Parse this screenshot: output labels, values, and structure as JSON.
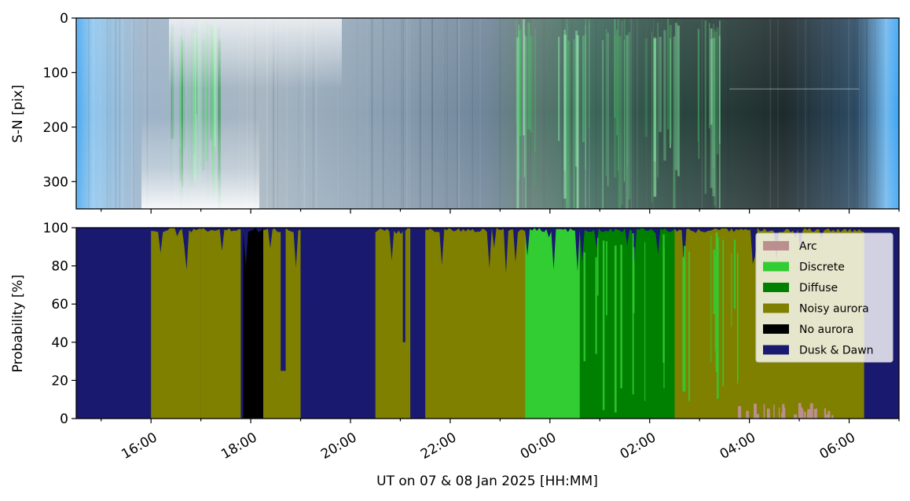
{
  "chart_data": [
    {
      "type": "heatmap",
      "description_kind": "keogram",
      "ylabel": "S-N [pix]",
      "ylim": [
        350,
        0
      ],
      "yticks": [
        "0",
        "100",
        "200",
        "300"
      ],
      "ytick_values": [
        0,
        100,
        200,
        300
      ]
    },
    {
      "type": "area",
      "stacked": true,
      "ylabel": "Probability [%]",
      "xlabel": "UT on 07 & 08 Jan 2025 [HH:MM]",
      "ylim": [
        0,
        100
      ],
      "yticks": [
        "0",
        "20",
        "40",
        "60",
        "80",
        "100"
      ],
      "ytick_values": [
        0,
        20,
        40,
        60,
        80,
        100
      ],
      "xlim_hours": [
        14.5,
        31.0
      ],
      "xticks": [
        "16:00",
        "18:00",
        "20:00",
        "22:00",
        "00:00",
        "02:00",
        "04:00",
        "06:00"
      ],
      "xtick_hours": [
        16,
        18,
        20,
        22,
        24,
        26,
        28,
        30
      ],
      "legend": {
        "position": "top-right"
      },
      "series": [
        {
          "name": "Arc",
          "color": "#bc8f8f"
        },
        {
          "name": "Discrete",
          "color": "#32cd32"
        },
        {
          "name": "Diffuse",
          "color": "#008000"
        },
        {
          "name": "Noisy aurora",
          "color": "#808000"
        },
        {
          "name": "No aurora",
          "color": "#000000"
        },
        {
          "name": "Dusk & Dawn",
          "color": "#191970"
        }
      ],
      "segments": [
        {
          "from": 14.5,
          "to": 15.5,
          "dominant": "Dusk & Dawn"
        },
        {
          "from": 15.5,
          "to": 16.0,
          "dominant": "Dusk & Dawn"
        },
        {
          "from": 16.0,
          "to": 17.0,
          "dominant": "Noisy aurora"
        },
        {
          "from": 17.0,
          "to": 17.8,
          "dominant": "Noisy aurora"
        },
        {
          "from": 17.85,
          "to": 18.25,
          "dominant": "No aurora"
        },
        {
          "from": 18.25,
          "to": 19.0,
          "dominant": "Noisy aurora"
        },
        {
          "from": 19.0,
          "to": 20.5,
          "dominant": "Dusk & Dawn"
        },
        {
          "from": 20.5,
          "to": 21.2,
          "dominant": "Noisy aurora"
        },
        {
          "from": 21.2,
          "to": 21.5,
          "dominant": "Dusk & Dawn"
        },
        {
          "from": 21.5,
          "to": 23.5,
          "dominant": "Noisy aurora"
        },
        {
          "from": 23.5,
          "to": 24.6,
          "dominant": "Discrete"
        },
        {
          "from": 24.6,
          "to": 26.5,
          "dominant": "Diffuse"
        },
        {
          "from": 26.5,
          "to": 30.3,
          "dominant": "Noisy aurora"
        },
        {
          "from": 30.3,
          "to": 31.0,
          "dominant": "Dusk & Dawn"
        }
      ]
    }
  ]
}
